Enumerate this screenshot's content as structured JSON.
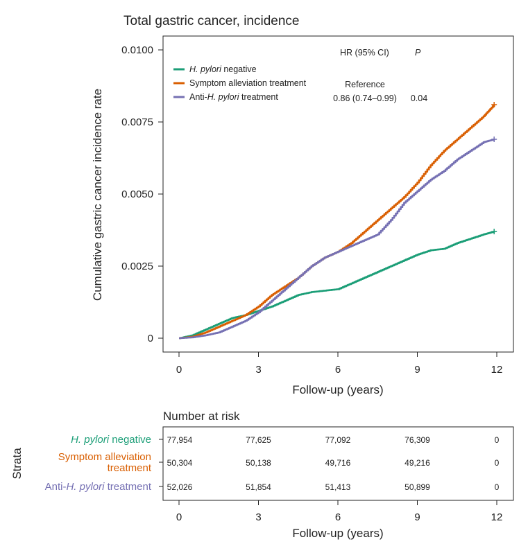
{
  "chart_data": [
    {
      "type": "line",
      "title": "Total gastric cancer, incidence",
      "xlabel": "Follow-up (years)",
      "ylabel": "Cumulative gastric cancer incidence rate",
      "xlim": [
        0,
        12
      ],
      "ylim": [
        0,
        0.01
      ],
      "x_ticks": [
        0,
        3,
        6,
        9,
        12
      ],
      "x_tick_labels": [
        "0",
        "3",
        "6",
        "9",
        "12"
      ],
      "y_ticks": [
        0,
        0.0025,
        0.005,
        0.0075,
        0.01
      ],
      "y_tick_labels": [
        "0",
        "0.0025",
        "0.0050",
        "0.0075",
        "0.0100"
      ],
      "legend_position": "top-left",
      "hr_header": "HR (95% CI)",
      "p_header": "P",
      "series": [
        {
          "name_parts": [
            {
              "t": "H. pylori",
              "i": true
            },
            {
              "t": " negative",
              "i": false
            }
          ],
          "color": "#1b9e77",
          "hr": "",
          "p": "",
          "x": [
            0,
            0.5,
            1,
            1.5,
            2,
            2.5,
            3,
            3.5,
            4,
            4.5,
            5,
            5.5,
            6,
            6.5,
            7,
            7.5,
            8,
            8.5,
            9,
            9.5,
            10,
            10.5,
            11,
            11.5,
            11.9
          ],
          "y": [
            0,
            0.0001,
            0.0003,
            0.0005,
            0.0007,
            0.0008,
            0.00095,
            0.0011,
            0.0013,
            0.0015,
            0.0016,
            0.00165,
            0.0017,
            0.0019,
            0.0021,
            0.0023,
            0.0025,
            0.0027,
            0.0029,
            0.00305,
            0.0031,
            0.0033,
            0.00345,
            0.0036,
            0.0037
          ]
        },
        {
          "name_parts": [
            {
              "t": "Symptom alleviation treatment",
              "i": false
            }
          ],
          "color": "#d95f02",
          "hr": "Reference",
          "p": "",
          "x": [
            0,
            0.5,
            1,
            1.5,
            2,
            2.5,
            3,
            3.5,
            4,
            4.5,
            5,
            5.5,
            6,
            6.5,
            7,
            7.5,
            8,
            8.5,
            9,
            9.5,
            10,
            10.5,
            11,
            11.5,
            11.9
          ],
          "y": [
            0,
            5e-05,
            0.0002,
            0.0004,
            0.0006,
            0.0008,
            0.0011,
            0.0015,
            0.0018,
            0.0021,
            0.0025,
            0.0028,
            0.003,
            0.0033,
            0.0037,
            0.0041,
            0.0045,
            0.0049,
            0.0054,
            0.006,
            0.0065,
            0.0069,
            0.0073,
            0.0077,
            0.0081
          ]
        },
        {
          "name_parts": [
            {
              "t": "Anti-",
              "i": false
            },
            {
              "t": "H. pylori",
              "i": true
            },
            {
              "t": " treatment",
              "i": false
            }
          ],
          "color": "#7570b3",
          "hr": "0.86 (0.74–0.99)",
          "p": "0.04",
          "x": [
            0,
            0.5,
            1,
            1.5,
            2,
            2.5,
            3,
            3.5,
            4,
            4.5,
            5,
            5.5,
            6,
            6.5,
            7,
            7.5,
            8,
            8.5,
            9,
            9.5,
            10,
            10.5,
            11,
            11.5,
            11.9
          ],
          "y": [
            0,
            3e-05,
            0.0001,
            0.0002,
            0.0004,
            0.0006,
            0.0009,
            0.0013,
            0.0017,
            0.0021,
            0.0025,
            0.0028,
            0.003,
            0.0032,
            0.0034,
            0.0036,
            0.0041,
            0.0047,
            0.0051,
            0.0055,
            0.0058,
            0.0062,
            0.0065,
            0.0068,
            0.0069
          ]
        }
      ]
    },
    {
      "type": "table",
      "title": "Number at risk",
      "ylabel": "Strata",
      "xlabel": "Follow-up (years)",
      "x_ticks": [
        0,
        3,
        6,
        9,
        12
      ],
      "x_tick_labels": [
        "0",
        "3",
        "6",
        "9",
        "12"
      ],
      "rows": [
        {
          "label_lines": [
            [
              {
                "t": "H. pylori",
                "i": true
              },
              {
                "t": " negative",
                "i": false
              }
            ]
          ],
          "color": "#1b9e77",
          "values": [
            "77,954",
            "77,625",
            "77,092",
            "76,309",
            "0"
          ]
        },
        {
          "label_lines": [
            [
              {
                "t": "Symptom alleviation",
                "i": false
              }
            ],
            [
              {
                "t": "treatment",
                "i": false
              }
            ]
          ],
          "color": "#d95f02",
          "values": [
            "50,304",
            "50,138",
            "49,716",
            "49,216",
            "0"
          ]
        },
        {
          "label_lines": [
            [
              {
                "t": "Anti-",
                "i": false
              },
              {
                "t": "H. pylori",
                "i": true
              },
              {
                "t": " treatment",
                "i": false
              }
            ]
          ],
          "color": "#7570b3",
          "values": [
            "52,026",
            "51,854",
            "51,413",
            "50,899",
            "0"
          ]
        }
      ]
    }
  ]
}
